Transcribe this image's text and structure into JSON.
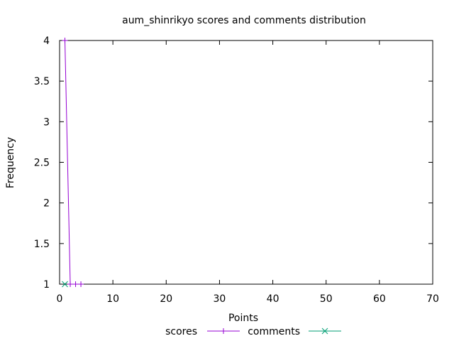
{
  "chart_data": {
    "type": "line",
    "title": "aum_shinrikyo scores and comments distribution",
    "xlabel": "Points",
    "ylabel": "Frequency",
    "xlim": [
      0,
      70
    ],
    "ylim": [
      1,
      4
    ],
    "xticks": [
      0,
      10,
      20,
      30,
      40,
      50,
      60,
      70
    ],
    "xtick_labels": [
      "0",
      "10",
      "20",
      "30",
      "40",
      "50",
      "60",
      "70"
    ],
    "yticks": [
      1,
      1.5,
      2,
      2.5,
      3,
      3.5,
      4
    ],
    "ytick_labels": [
      "1",
      "1.5",
      "2",
      "2.5",
      "3",
      "3.5",
      "4"
    ],
    "grid": false,
    "legend_position": "bottom-center",
    "series": [
      {
        "name": "scores",
        "color": "#9400d3",
        "marker": "plus",
        "x": [
          1,
          2,
          3,
          4
        ],
        "y": [
          4,
          1,
          1,
          1
        ]
      },
      {
        "name": "comments",
        "color": "#009e73",
        "marker": "cross",
        "x": [
          1
        ],
        "y": [
          1
        ]
      }
    ]
  }
}
